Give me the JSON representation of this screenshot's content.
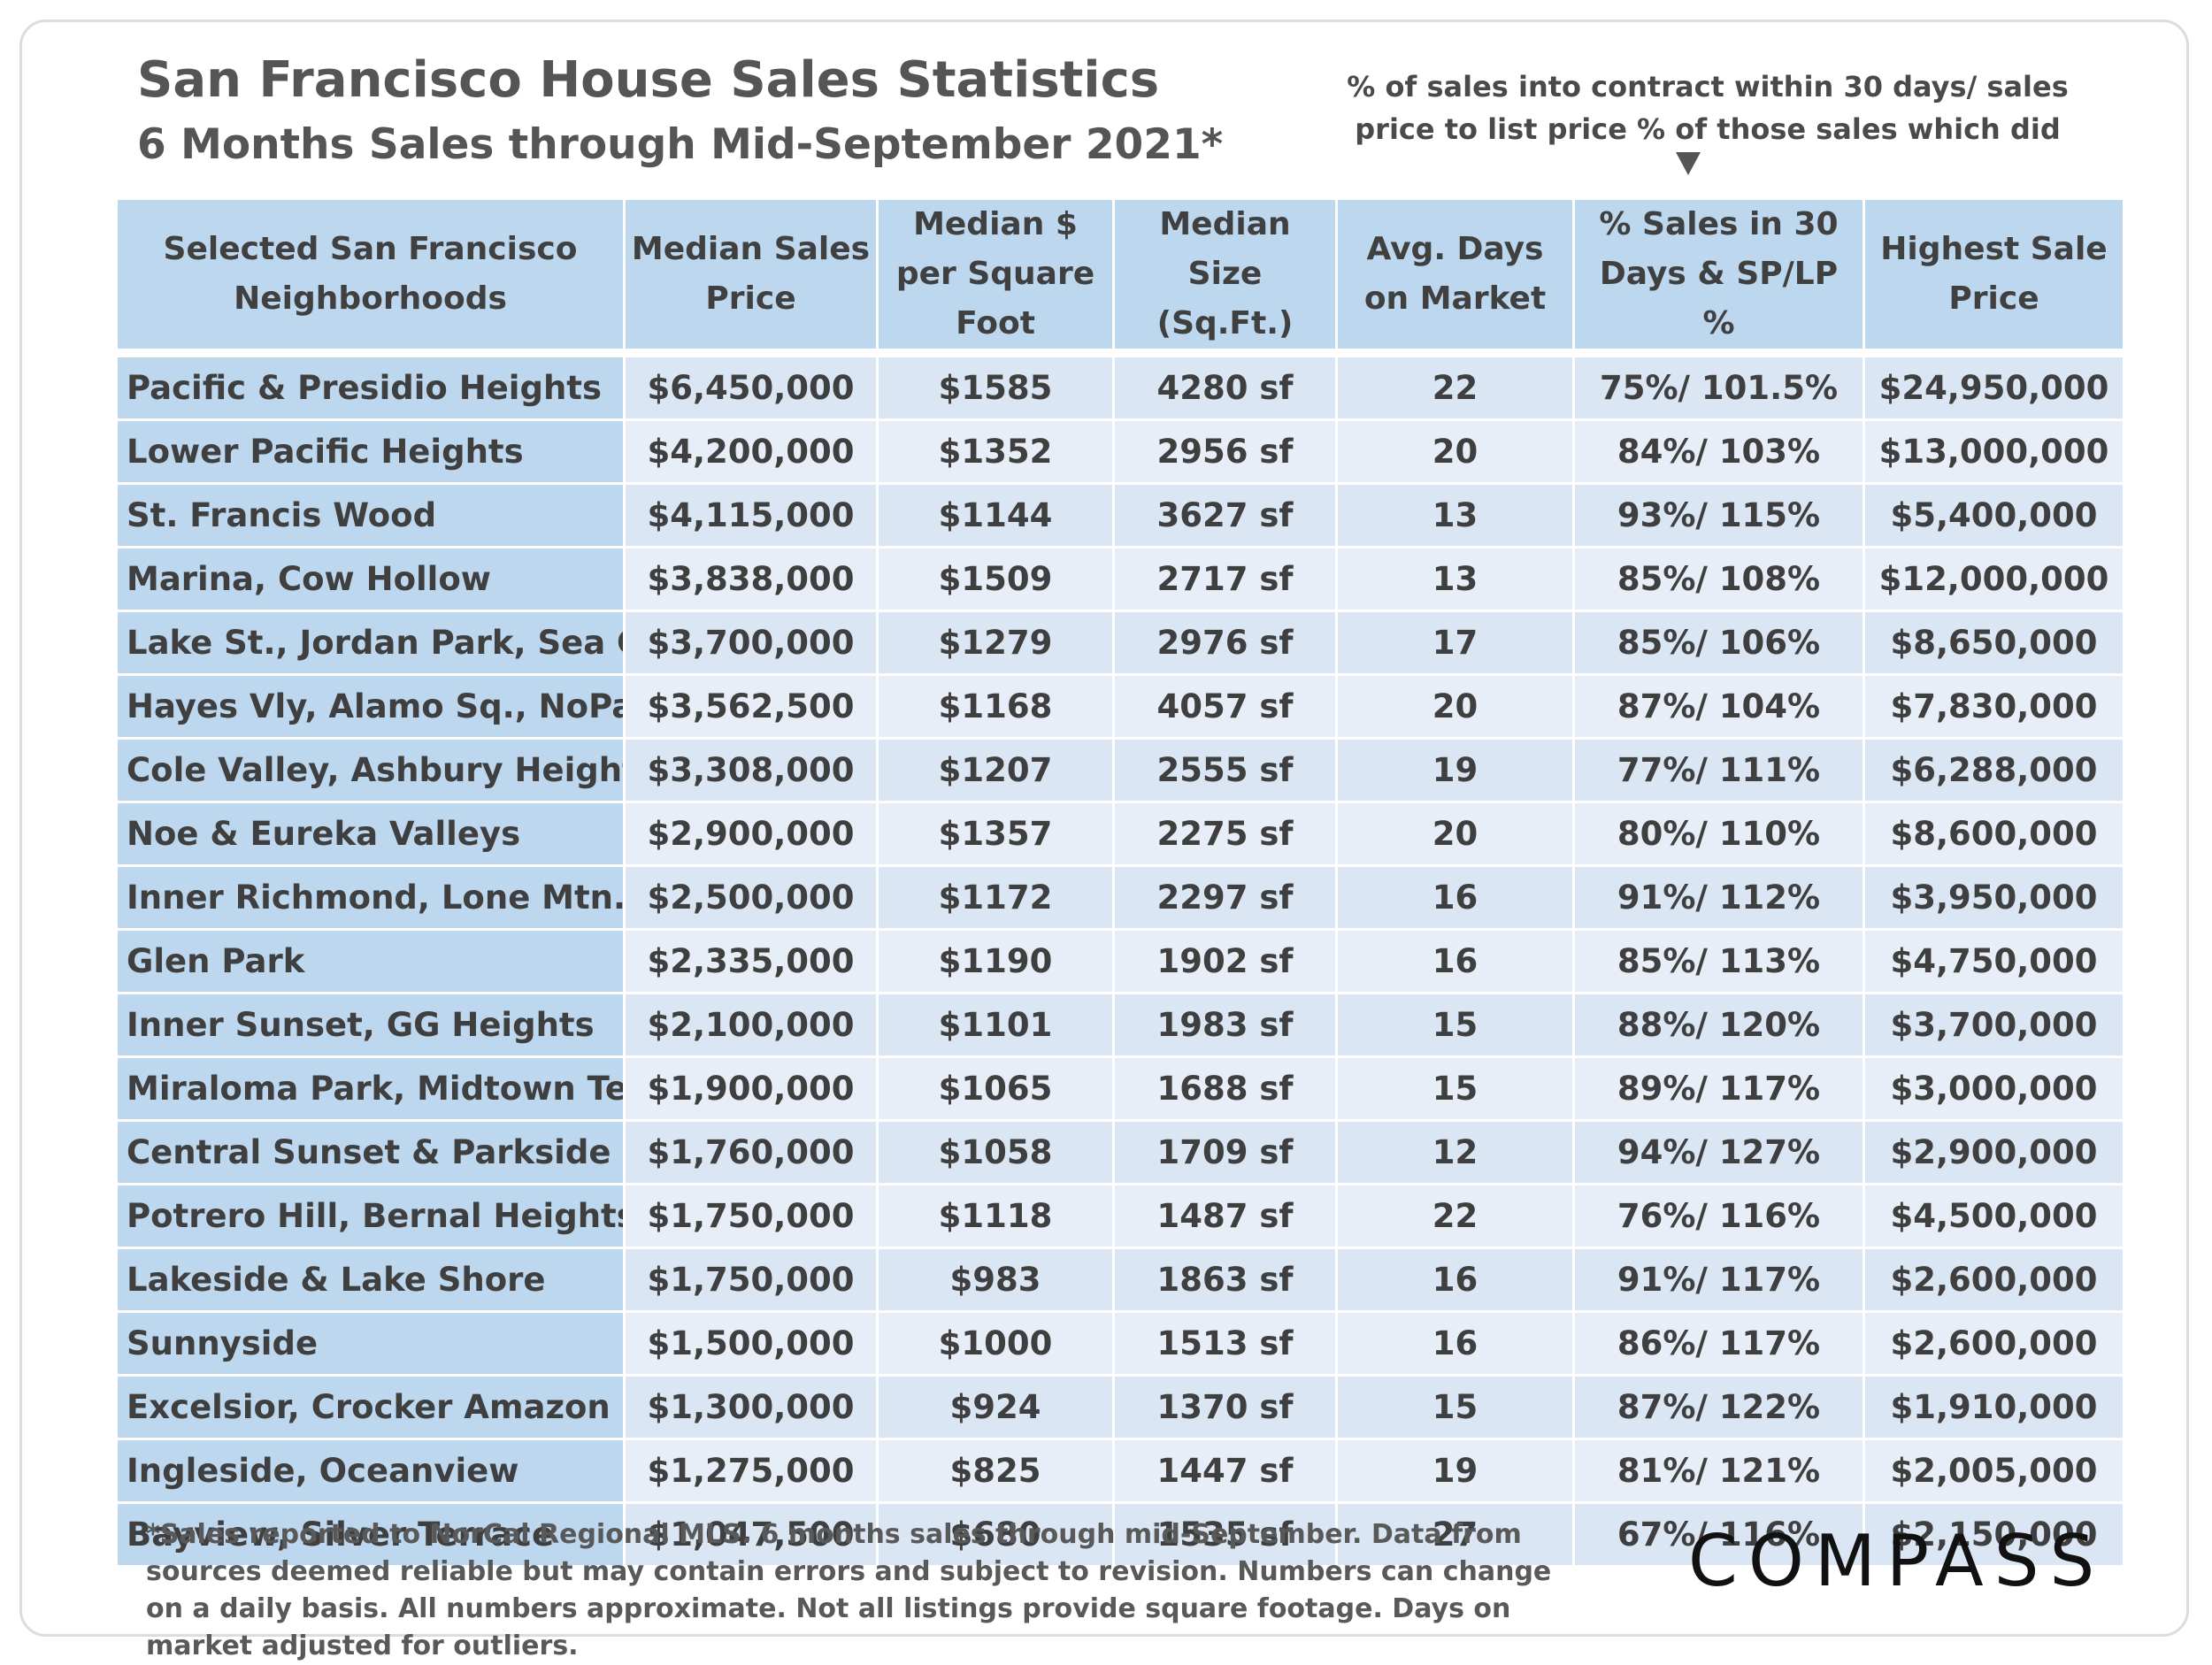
{
  "title": "San Francisco House Sales Statistics",
  "subtitle": "6 Months Sales through Mid-September 2021*",
  "note": "% of sales into contract within 30 days/ sales price to list price % of those sales which did",
  "columns": [
    "Selected San Francisco Neighborhoods",
    "Median Sales Price",
    "Median $ per Square Foot",
    "Median Size (Sq.Ft.)",
    "Avg. Days on Market",
    "% Sales in 30 Days & SP/LP %",
    "Highest Sale Price"
  ],
  "rows": [
    [
      "Pacific & Presidio Heights",
      "$6,450,000",
      "$1585",
      "4280 sf",
      "22",
      "75%/ 101.5%",
      "$24,950,000"
    ],
    [
      "Lower Pacific Heights",
      "$4,200,000",
      "$1352",
      "2956 sf",
      "20",
      "84%/ 103%",
      "$13,000,000"
    ],
    [
      "St. Francis Wood",
      "$4,115,000",
      "$1144",
      "3627 sf",
      "13",
      "93%/ 115%",
      "$5,400,000"
    ],
    [
      "Marina, Cow Hollow",
      "$3,838,000",
      "$1509",
      "2717 sf",
      "13",
      "85%/ 108%",
      "$12,000,000"
    ],
    [
      "Lake St., Jordan Park, Sea Cliff",
      "$3,700,000",
      "$1279",
      "2976 sf",
      "17",
      "85%/ 106%",
      "$8,650,000"
    ],
    [
      "Hayes Vly, Alamo Sq., NoPa",
      "$3,562,500",
      "$1168",
      "4057 sf",
      "20",
      "87%/ 104%",
      "$7,830,000"
    ],
    [
      "Cole Valley, Ashbury Heights",
      "$3,308,000",
      "$1207",
      "2555 sf",
      "19",
      "77%/ 111%",
      "$6,288,000"
    ],
    [
      "Noe & Eureka Valleys",
      "$2,900,000",
      "$1357",
      "2275 sf",
      "20",
      "80%/ 110%",
      "$8,600,000"
    ],
    [
      "Inner Richmond, Lone Mtn.",
      "$2,500,000",
      "$1172",
      "2297 sf",
      "16",
      "91%/ 112%",
      "$3,950,000"
    ],
    [
      "Glen Park",
      "$2,335,000",
      "$1190",
      "1902 sf",
      "16",
      "85%/ 113%",
      "$4,750,000"
    ],
    [
      "Inner Sunset, GG Heights",
      "$2,100,000",
      "$1101",
      "1983 sf",
      "15",
      "88%/ 120%",
      "$3,700,000"
    ],
    [
      "Miraloma Park, Midtown Ter.",
      "$1,900,000",
      "$1065",
      "1688 sf",
      "15",
      "89%/ 117%",
      "$3,000,000"
    ],
    [
      "Central Sunset & Parkside",
      "$1,760,000",
      "$1058",
      "1709 sf",
      "12",
      "94%/ 127%",
      "$2,900,000"
    ],
    [
      "Potrero Hill, Bernal Heights",
      "$1,750,000",
      "$1118",
      "1487 sf",
      "22",
      "76%/ 116%",
      "$4,500,000"
    ],
    [
      "Lakeside & Lake Shore",
      "$1,750,000",
      "$983",
      "1863 sf",
      "16",
      "91%/ 117%",
      "$2,600,000"
    ],
    [
      "Sunnyside",
      "$1,500,000",
      "$1000",
      "1513 sf",
      "16",
      "86%/ 117%",
      "$2,600,000"
    ],
    [
      "Excelsior, Crocker Amazon",
      "$1,300,000",
      "$924",
      "1370 sf",
      "15",
      "87%/ 122%",
      "$1,910,000"
    ],
    [
      "Ingleside, Oceanview",
      "$1,275,000",
      "$825",
      "1447 sf",
      "19",
      "81%/ 121%",
      "$2,005,000"
    ],
    [
      "Bayview, Silver Terrace",
      "$1,047,500",
      "$680",
      "1535 sf",
      "27",
      "67%/ 116%",
      "$2,150,000"
    ]
  ],
  "footnote": "*Sales reported to NorCal Regional MLS. 6 months sales through mid-September. Data from sources deemed reliable but may contain errors and subject to revision. Numbers can change on a daily basis. All numbers approximate. Not all listings provide square footage. Days on market adjusted for outliers.",
  "logo": "COMPASS"
}
